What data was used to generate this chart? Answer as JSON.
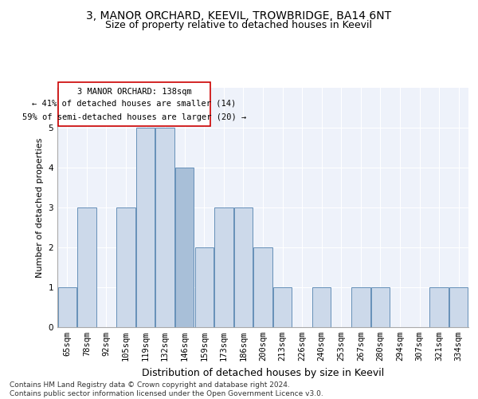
{
  "title1": "3, MANOR ORCHARD, KEEVIL, TROWBRIDGE, BA14 6NT",
  "title2": "Size of property relative to detached houses in Keevil",
  "xlabel": "Distribution of detached houses by size in Keevil",
  "ylabel": "Number of detached properties",
  "footer1": "Contains HM Land Registry data © Crown copyright and database right 2024.",
  "footer2": "Contains public sector information licensed under the Open Government Licence v3.0.",
  "annotation_line1": "3 MANOR ORCHARD: 138sqm",
  "annotation_line2": "← 41% of detached houses are smaller (14)",
  "annotation_line3": "59% of semi-detached houses are larger (20) →",
  "categories": [
    "65sqm",
    "78sqm",
    "92sqm",
    "105sqm",
    "119sqm",
    "132sqm",
    "146sqm",
    "159sqm",
    "173sqm",
    "186sqm",
    "200sqm",
    "213sqm",
    "226sqm",
    "240sqm",
    "253sqm",
    "267sqm",
    "280sqm",
    "294sqm",
    "307sqm",
    "321sqm",
    "334sqm"
  ],
  "values": [
    1,
    3,
    0,
    3,
    5,
    5,
    4,
    2,
    3,
    3,
    2,
    1,
    0,
    1,
    0,
    1,
    1,
    0,
    0,
    1,
    1
  ],
  "highlight_index": 6,
  "bar_color_normal": "#ccd9ea",
  "bar_color_highlight": "#a8bfd8",
  "bar_edge_color": "#6690b8",
  "ylim": [
    0,
    6
  ],
  "yticks": [
    0,
    1,
    2,
    3,
    4,
    5,
    6
  ],
  "bg_color": "#eef2fa",
  "annotation_box_color": "#ffffff",
  "annotation_box_edge": "#cc0000",
  "title1_fontsize": 10,
  "title2_fontsize": 9,
  "xlabel_fontsize": 9,
  "ylabel_fontsize": 8,
  "tick_fontsize": 7.5,
  "annotation_fontsize": 7.5,
  "footer_fontsize": 6.5
}
